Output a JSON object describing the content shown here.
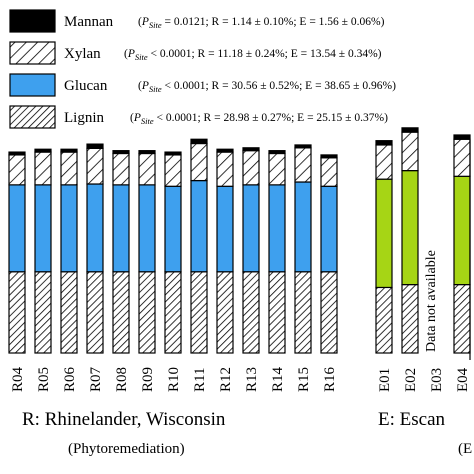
{
  "chart_data": {
    "type": "bar",
    "stacked": true,
    "categories": [
      "R04",
      "R05",
      "R06",
      "R07",
      "R08",
      "R09",
      "R10",
      "R11",
      "R12",
      "R13",
      "R14",
      "R15",
      "R16",
      "E01",
      "E02",
      "E03",
      "E04"
    ],
    "series": [
      {
        "name": "Lignin",
        "color": "#ffffff",
        "pattern": "hatch-dense",
        "values": [
          28.5,
          28.5,
          28.5,
          28.5,
          28.5,
          28.5,
          28.5,
          28.5,
          28.5,
          28.5,
          28.5,
          28.5,
          28.5,
          23,
          24,
          null,
          24
        ]
      },
      {
        "name": "Glucan",
        "color_R": "#3ea0ee",
        "color_E": "#a6d515",
        "values": [
          30.5,
          30.5,
          30.5,
          30.8,
          30.5,
          30.5,
          30,
          32,
          30,
          30.5,
          30.5,
          31.5,
          30,
          38,
          40,
          null,
          38
        ]
      },
      {
        "name": "Xylan",
        "color": "#ffffff",
        "pattern": "hatch-wide",
        "values": [
          10.5,
          11.5,
          11.5,
          12.5,
          11,
          11,
          11,
          13,
          12,
          12,
          11,
          12,
          10,
          12,
          13.5,
          null,
          13
        ]
      },
      {
        "name": "Mannan",
        "color": "#000000",
        "values": [
          1,
          1,
          1,
          1.5,
          1,
          1,
          1,
          1.5,
          1,
          1,
          1,
          1,
          1,
          1.5,
          1.5,
          null,
          1.5
        ]
      }
    ],
    "legend": [
      {
        "name": "Mannan",
        "stat_p": "P",
        "stat_sub": "Site",
        "stat_rest": " = 0.0121; R = 1.14 ± 0.10%; E = 1.56 ± 0.06%)"
      },
      {
        "name": "Xylan",
        "stat_p": "P",
        "stat_sub": "Site",
        "stat_rest": " < 0.0001; R = 11.18 ± 0.24%; E = 13.54 ± 0.34%)"
      },
      {
        "name": "Glucan",
        "stat_p": "P",
        "stat_sub": "Site",
        "stat_rest": " < 0.0001; R = 30.56 ± 0.52%; E = 38.65 ± 0.96%)"
      },
      {
        "name": "Lignin",
        "stat_p": "P",
        "stat_sub": "Site",
        "stat_rest": " < 0.0001; R = 28.98 ± 0.27%; E = 25.15 ± 0.37%)"
      }
    ],
    "annotations": {
      "na_text": "Data not available",
      "na_category": "E03"
    },
    "groups": [
      {
        "label": "R: Rhinelander, Wisconsin",
        "note": "(Phytoremediation)"
      },
      {
        "label": "E: Escan",
        "note": "(E"
      }
    ],
    "legend_position": "top-left",
    "grid": false
  }
}
